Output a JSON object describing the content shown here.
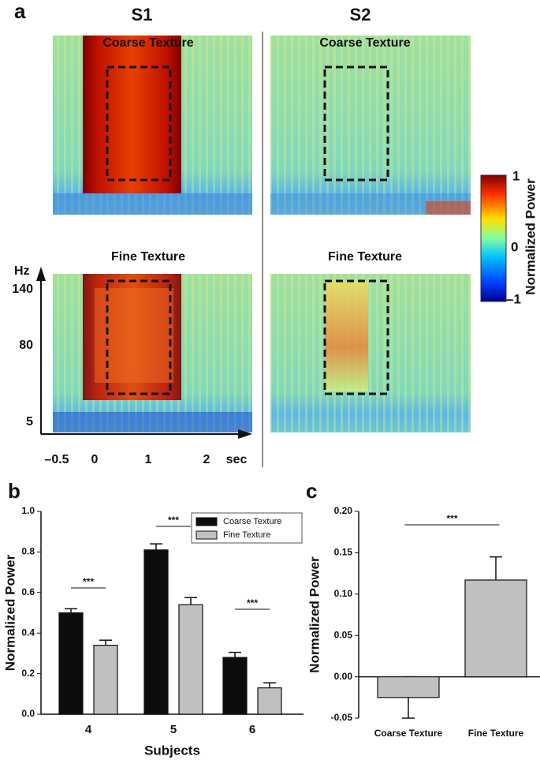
{
  "panel_a": {
    "label": "a",
    "columns": [
      "S1",
      "S2"
    ],
    "panels": [
      {
        "title": "Coarse Texture"
      },
      {
        "title": "Coarse Texture"
      },
      {
        "title": "Fine Texture"
      },
      {
        "title": "Fine Texture"
      }
    ],
    "y_axis": {
      "label": "Hz",
      "ticks": [
        "140",
        "80",
        "5"
      ]
    },
    "x_axis": {
      "label": "sec",
      "ticks": [
        "–0.5",
        "0",
        "1",
        "2"
      ]
    },
    "colorbar": {
      "label": "Normalized Power",
      "ticks": [
        "1",
        "0",
        "–1"
      ]
    }
  },
  "chart_data": [
    {
      "type": "bar",
      "panel": "b",
      "categories": [
        "4",
        "5",
        "6"
      ],
      "xlabel": "Subjects",
      "ylabel": "Normalized Power",
      "series": [
        {
          "name": "Coarse Texture",
          "color": "#0d0d0d",
          "values": [
            0.5,
            0.81,
            0.28
          ],
          "errors": [
            0.02,
            0.03,
            0.025
          ]
        },
        {
          "name": "Fine Texture",
          "color": "#c0c0c0",
          "values": [
            0.34,
            0.54,
            0.13
          ],
          "errors": [
            0.025,
            0.035,
            0.025
          ]
        }
      ],
      "ylim": [
        0,
        1
      ],
      "yticks": [
        {
          "value": 0,
          "label": "0.0"
        },
        0.2,
        0.4,
        0.6,
        0.8,
        {
          "value": 1,
          "label": "1.0"
        }
      ],
      "annotations": [
        "***",
        "***",
        "***"
      ],
      "legend": "upper right"
    },
    {
      "type": "bar",
      "panel": "c",
      "categories": [
        "Coarse Texture",
        "Fine Texture"
      ],
      "ylabel": "Normalized Power",
      "values": [
        -0.025,
        0.117
      ],
      "errors": [
        0.025,
        0.028
      ],
      "color": "#c0c0c0",
      "ylim": [
        -0.05,
        0.2
      ],
      "yticks": [
        -0.05,
        {
          "value": 0,
          "label": "0.00"
        },
        0.05,
        {
          "value": 0.1,
          "label": "0.10"
        },
        0.15,
        {
          "value": 0.2,
          "label": "0.20"
        }
      ],
      "annotations": [
        "***"
      ]
    }
  ]
}
